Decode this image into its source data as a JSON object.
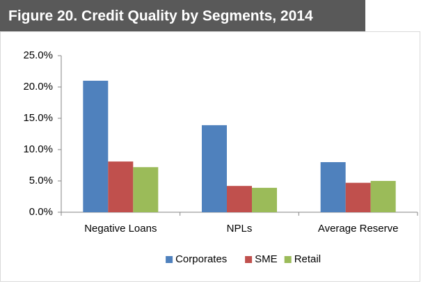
{
  "chart_data": {
    "type": "bar",
    "title": "Figure 20. Credit Quality by Segments, 2014",
    "categories": [
      "Negative Loans",
      "NPLs",
      "Average Reserve"
    ],
    "series": [
      {
        "name": "Corporates",
        "color": "#4f81bd",
        "values": [
          21.0,
          13.9,
          8.0
        ]
      },
      {
        "name": "SME",
        "color": "#c0504d",
        "values": [
          8.1,
          4.2,
          4.7
        ]
      },
      {
        "name": "Retail",
        "color": "#9bbb59",
        "values": [
          7.2,
          3.9,
          5.0
        ]
      }
    ],
    "ylim": [
      0,
      25
    ],
    "yticks": [
      {
        "value": 0,
        "label": "0.0%"
      },
      {
        "value": 5,
        "label": "5.0%"
      },
      {
        "value": 10,
        "label": "10.0%"
      },
      {
        "value": 15,
        "label": "15.0%"
      },
      {
        "value": 20,
        "label": "20.0%"
      },
      {
        "value": 25,
        "label": "25.0%"
      }
    ],
    "legend": "bottom",
    "grid": false
  }
}
